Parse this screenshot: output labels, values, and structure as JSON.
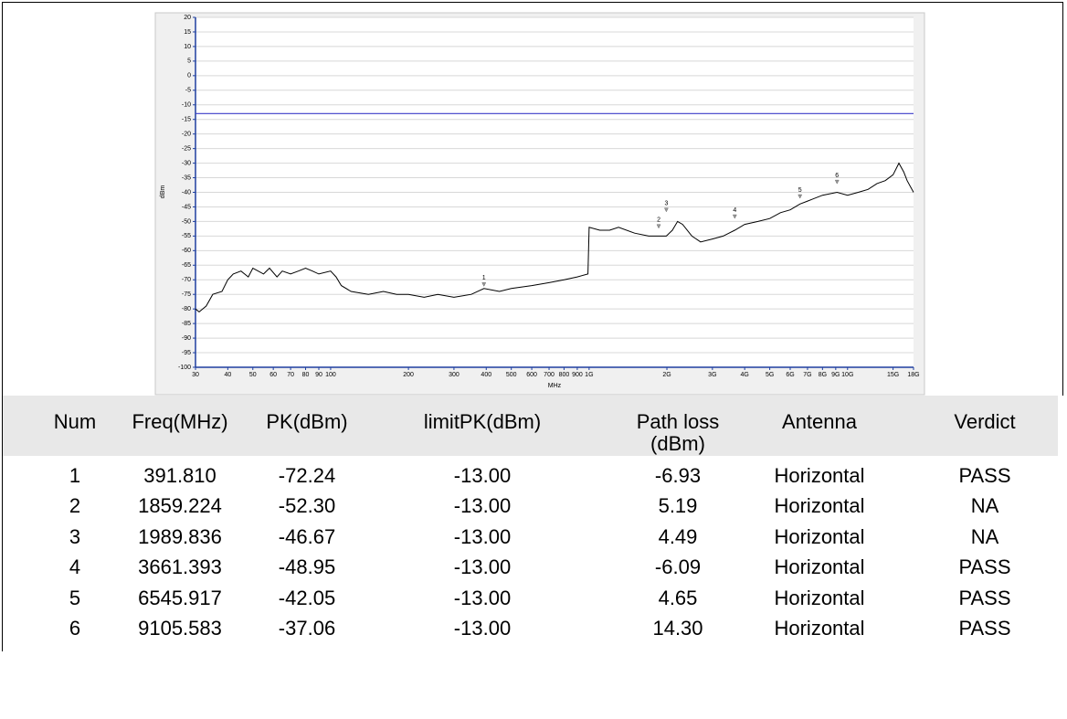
{
  "chart_data": {
    "type": "line",
    "x_label": "MHz",
    "y_label": "dBm",
    "xscale": "log",
    "grid": true,
    "color": "#000000",
    "xlim": [
      30,
      18000
    ],
    "ylim": [
      -100,
      20
    ],
    "xticks": [
      30,
      40,
      50,
      60,
      70,
      80,
      90,
      100,
      200,
      300,
      400,
      500,
      600,
      700,
      800,
      900,
      {
        "value": 1000,
        "label": "1G"
      },
      {
        "value": 2000,
        "label": "2G"
      },
      {
        "value": 3000,
        "label": "3G"
      },
      {
        "value": 4000,
        "label": "4G"
      },
      {
        "value": 5000,
        "label": "5G"
      },
      {
        "value": 6000,
        "label": "6G"
      },
      {
        "value": 7000,
        "label": "7G"
      },
      {
        "value": 8000,
        "label": "8G"
      },
      {
        "value": 9000,
        "label": "9G"
      },
      {
        "value": 10000,
        "label": "10G"
      },
      {
        "value": 15000,
        "label": "15G"
      },
      {
        "value": 18000,
        "label": "18G"
      }
    ],
    "yticks": [
      -100,
      -95,
      -90,
      -85,
      -80,
      -75,
      -70,
      -65,
      -60,
      -55,
      -50,
      -45,
      -40,
      -35,
      -30,
      -25,
      -20,
      -15,
      -10,
      -5,
      0,
      5,
      10,
      15,
      20
    ],
    "x": [
      30,
      31,
      33,
      35,
      38,
      40,
      42,
      45,
      48,
      50,
      55,
      58,
      62,
      65,
      70,
      75,
      80,
      85,
      90,
      100,
      105,
      110,
      120,
      140,
      160,
      180,
      200,
      230,
      260,
      300,
      350,
      392,
      450,
      500,
      600,
      700,
      800,
      900,
      990,
      1000,
      1100,
      1200,
      1300,
      1500,
      1700,
      1860,
      1990,
      2100,
      2200,
      2300,
      2500,
      2700,
      3000,
      3300,
      3661,
      4000,
      4500,
      5000,
      5500,
      6000,
      6546,
      7000,
      8000,
      9106,
      10000,
      11000,
      12000,
      13000,
      14000,
      15000,
      15800,
      16500,
      17000,
      18000
    ],
    "values": [
      -80,
      -81,
      -79,
      -75,
      -74,
      -70,
      -68,
      -67,
      -69,
      -66,
      -68,
      -66,
      -69,
      -67,
      -68,
      -67,
      -66,
      -67,
      -68,
      -67,
      -69,
      -72,
      -74,
      -75,
      -74,
      -75,
      -75,
      -76,
      -75,
      -76,
      -75,
      -73,
      -74,
      -73,
      -72,
      -71,
      -70,
      -69,
      -68,
      -52,
      -53,
      -53,
      -52,
      -54,
      -55,
      -55,
      -55,
      -53,
      -50,
      -51,
      -55,
      -57,
      -56,
      -55,
      -53,
      -51,
      -50,
      -49,
      -47,
      -46,
      -44,
      -43,
      -41,
      -40,
      -41,
      -40,
      -39,
      -37,
      -36,
      -34,
      -30,
      -33,
      -36,
      -40
    ],
    "limit_line": {
      "value": -13,
      "color": "#3c3cc8"
    },
    "markers": {
      "labels": [
        "1",
        "2",
        "3",
        "4",
        "5",
        "6"
      ],
      "x": [
        391.81,
        1859.224,
        1989.836,
        3661.393,
        6545.917,
        9105.583
      ],
      "values": [
        -72.24,
        -52.3,
        -46.67,
        -48.95,
        -42.05,
        -37.06
      ]
    }
  },
  "table": {
    "header": [
      "Num",
      "Freq(MHz)",
      "PK(dBm)",
      "limitPK(dBm)",
      "Path loss\n(dBm)",
      "Antenna",
      "Verdict"
    ],
    "rows": [
      [
        "1",
        "391.810",
        "-72.24",
        "-13.00",
        "-6.93",
        "Horizontal",
        "PASS"
      ],
      [
        "2",
        "1859.224",
        "-52.30",
        "-13.00",
        "5.19",
        "Horizontal",
        "NA"
      ],
      [
        "3",
        "1989.836",
        "-46.67",
        "-13.00",
        "4.49",
        "Horizontal",
        "NA"
      ],
      [
        "4",
        "3661.393",
        "-48.95",
        "-13.00",
        "-6.09",
        "Horizontal",
        "PASS"
      ],
      [
        "5",
        "6545.917",
        "-42.05",
        "-13.00",
        "4.65",
        "Horizontal",
        "PASS"
      ],
      [
        "6",
        "9105.583",
        "-37.06",
        "-13.00",
        "14.30",
        "Horizontal",
        "PASS"
      ]
    ]
  }
}
